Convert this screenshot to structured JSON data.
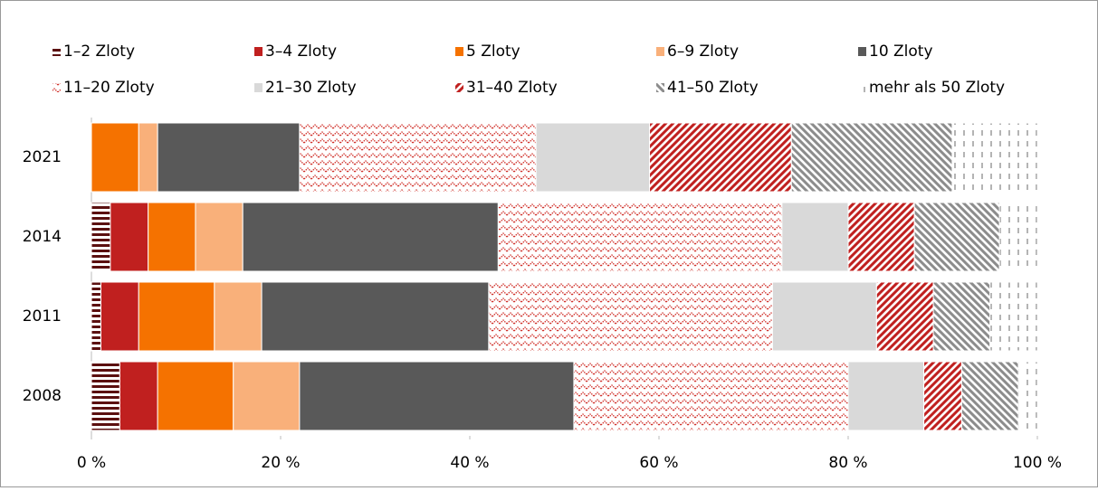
{
  "chart_data": {
    "type": "stacked_barh",
    "categories": [
      "2021",
      "2014",
      "2011",
      "2008"
    ],
    "series": [
      {
        "name": "1–2 Zloty",
        "color": "#5b1010",
        "pattern": "hstripes",
        "values": [
          0,
          2,
          1,
          3
        ]
      },
      {
        "name": "3–4 Zloty",
        "color": "#c0201f",
        "pattern": "solid",
        "values": [
          0,
          4,
          4,
          4
        ]
      },
      {
        "name": "5 Zloty",
        "color": "#f57200",
        "pattern": "solid",
        "values": [
          5,
          5,
          8,
          8
        ]
      },
      {
        "name": "6–9 Zloty",
        "color": "#f9b07a",
        "pattern": "solid",
        "values": [
          2,
          5,
          5,
          7
        ]
      },
      {
        "name": "10 Zloty",
        "color": "#595959",
        "pattern": "solid",
        "values": [
          15,
          27,
          24,
          29
        ]
      },
      {
        "name": "11–20 Zloty",
        "color": "#d0302a",
        "pattern": "zigzag",
        "values": [
          25,
          30,
          30,
          29
        ]
      },
      {
        "name": "21–30 Zloty",
        "color": "#d9d9d9",
        "pattern": "solid",
        "values": [
          12,
          7,
          11,
          8
        ]
      },
      {
        "name": "31–40 Zloty",
        "color": "#c0201f",
        "pattern": "diagup",
        "values": [
          15,
          7,
          6,
          4
        ]
      },
      {
        "name": "41–50 Zloty",
        "color": "#8c8c8c",
        "pattern": "diagdown",
        "values": [
          17,
          9,
          6,
          6
        ]
      },
      {
        "name": "mehr als 50 Zloty",
        "color": "#8c8c8c",
        "pattern": "vdash",
        "values": [
          9,
          4,
          5,
          2
        ]
      }
    ],
    "xlim": [
      0,
      100
    ],
    "xticks": [
      {
        "value": 0,
        "label": "0 %"
      },
      {
        "value": 20,
        "label": "20 %"
      },
      {
        "value": 40,
        "label": "40 %"
      },
      {
        "value": 60,
        "label": "60 %"
      },
      {
        "value": 80,
        "label": "80 %"
      },
      {
        "value": 100,
        "label": "100 %"
      }
    ]
  }
}
